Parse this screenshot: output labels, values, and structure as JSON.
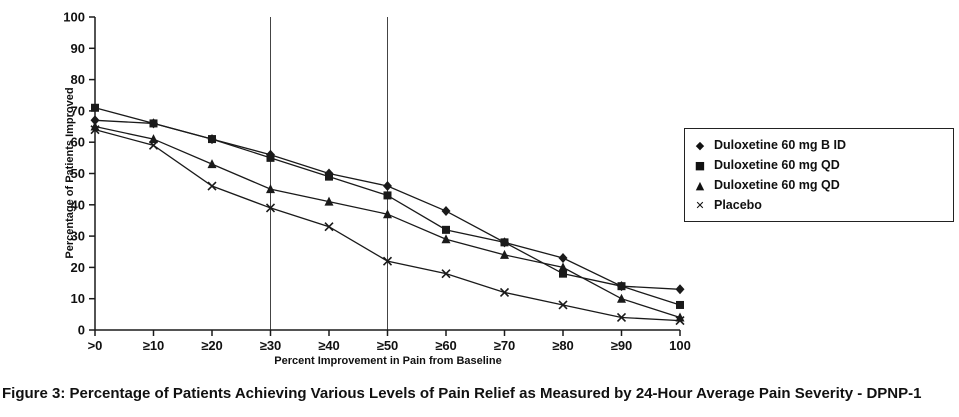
{
  "caption": "Figure 3: Percentage of Patients Achieving Various Levels of Pain Relief as Measured by 24-Hour Average Pain Severity - DPNP-1",
  "colors": {
    "line": "#1a1a1a",
    "text": "#111111",
    "background": "#ffffff",
    "reference_line": "#444444"
  },
  "chart_data": {
    "type": "line",
    "title": "",
    "xlabel": "Percent Improvement in Pain from Baseline",
    "ylabel": "Percentage of Patients Improved",
    "ylim": [
      0,
      100
    ],
    "ytick_interval": 10,
    "ytick_labels": [
      "0",
      "10",
      "20",
      "30",
      "40",
      "50",
      "60",
      "70",
      "80",
      "90",
      "100"
    ],
    "grid": "off",
    "legend_position": "right-outside",
    "categories": [
      ">0",
      "≥10",
      "≥20",
      "≥30",
      "≥40",
      "≥50",
      "≥60",
      "≥70",
      "≥80",
      "≥90",
      "100"
    ],
    "reference_line_categories": [
      "≥30",
      "≥50"
    ],
    "series": [
      {
        "name": "Duloxetine 60 mg B ID",
        "marker": "diamond",
        "values": [
          67,
          66,
          61,
          56,
          50,
          46,
          38,
          28,
          23,
          14,
          13
        ]
      },
      {
        "name": "Duloxetine 60 mg QD",
        "marker": "square",
        "values": [
          71,
          66,
          61,
          55,
          49,
          43,
          32,
          28,
          18,
          14,
          8
        ]
      },
      {
        "name": "Duloxetine 60 mg QD",
        "marker": "triangle",
        "values": [
          65,
          61,
          53,
          45,
          41,
          37,
          29,
          24,
          20,
          10,
          4
        ]
      },
      {
        "name": "Placebo",
        "marker": "x",
        "values": [
          64,
          59,
          46,
          39,
          33,
          22,
          18,
          12,
          8,
          4,
          3
        ]
      }
    ]
  }
}
